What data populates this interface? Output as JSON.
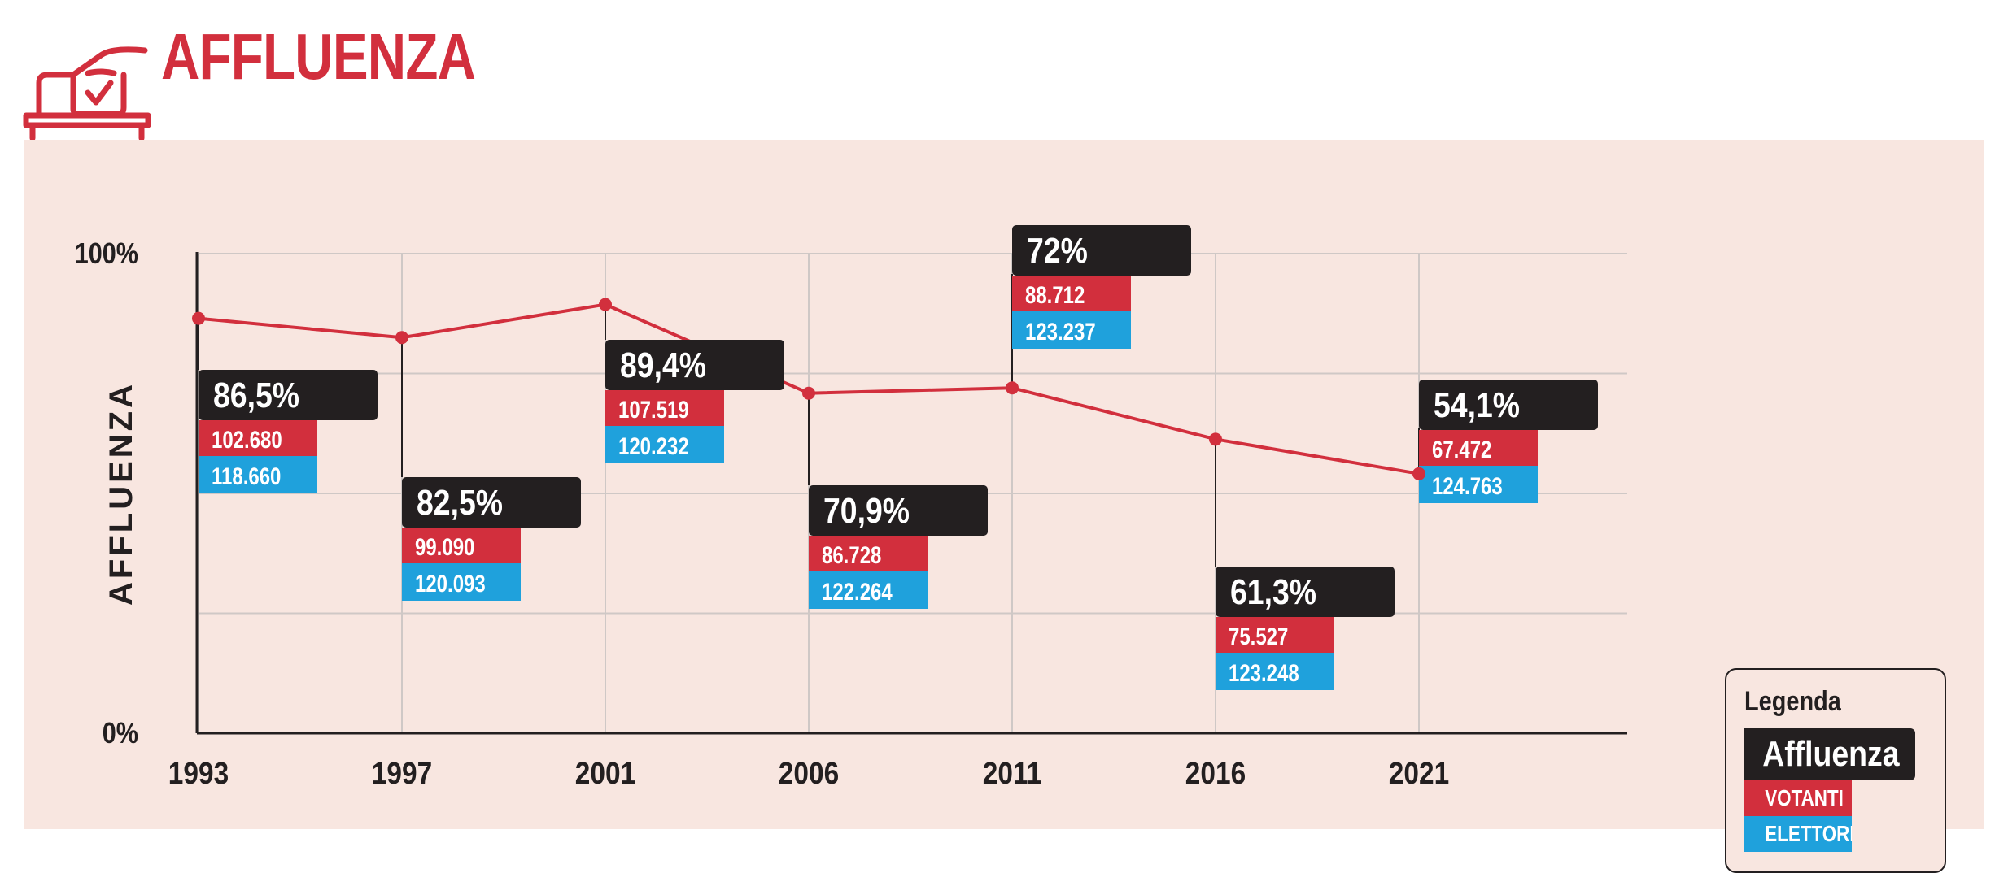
{
  "header": {
    "title": "AFFLUENZA"
  },
  "colors": {
    "brand": "#d22f3d",
    "dark": "#231f20",
    "votanti": "#d22f3d",
    "elettori": "#1fa1dc",
    "panel": "#f8e6e0",
    "grid": "#cfc8c6"
  },
  "chart_data": {
    "type": "line",
    "title": "AFFLUENZA",
    "ylabel": "AFFLUENZA",
    "xlabel": "",
    "ylim": [
      0,
      100
    ],
    "y_tick_labels": [
      "0%",
      "100%"
    ],
    "grid": true,
    "legend_position": "right",
    "categories": [
      "1993",
      "1997",
      "2001",
      "2006",
      "2011",
      "2016",
      "2021"
    ],
    "series": [
      {
        "name": "Affluenza",
        "values": [
          86.5,
          82.5,
          89.4,
          70.9,
          72.0,
          61.3,
          54.1
        ]
      }
    ],
    "labels": {
      "affluenza": [
        "86,5%",
        "82,5%",
        "89,4%",
        "70,9%",
        "72%",
        "61,3%",
        "54,1%"
      ],
      "votanti": [
        "102.680",
        "99.090",
        "107.519",
        "86.728",
        "88.712",
        "75.527",
        "67.472"
      ],
      "elettori": [
        "118.660",
        "120.093",
        "120.232",
        "122.264",
        "123.237",
        "123.248",
        "124.763"
      ]
    },
    "legend": {
      "title": "Legenda",
      "items": [
        "Affluenza",
        "VOTANTI",
        "ELETTORI"
      ]
    }
  }
}
